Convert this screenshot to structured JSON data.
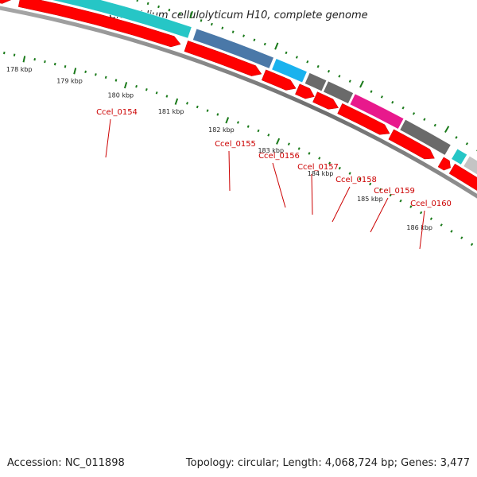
{
  "title": "Clostridium cellulolyticum H10, complete genome",
  "footer": {
    "accession": "Accession: NC_011898",
    "summary": "Topology: circular; Length: 4,068,724 bp; Genes: 3,477"
  },
  "colors": {
    "backbone": "#777777",
    "cds": "#ff0000",
    "gene_label": "#cc0000",
    "ticks": "#1a7a1a",
    "cyan": "#26c6c6",
    "steelblue": "#4a78a8",
    "skyblue": "#1ab2ee",
    "darkgray": "#6a6a6a",
    "magenta": "#e8198c",
    "lightgray": "#c4c4c4"
  },
  "gene_labels": [
    "Ccel_0154",
    "Ccel_0155",
    "Ccel_0156",
    "Ccel_0157",
    "Ccel_0158",
    "Ccel_0159",
    "Ccel_0160"
  ],
  "kbp_labels": [
    "178 kbp",
    "179 kbp",
    "180 kbp",
    "181 kbp",
    "182 kbp",
    "183 kbp",
    "184 kbp",
    "185 kbp",
    "186 kbp"
  ],
  "cog_features": [
    {
      "color": "cyan"
    },
    {
      "color": "cyan"
    },
    {
      "color": "steelblue"
    },
    {
      "color": "skyblue"
    },
    {
      "color": "darkgray"
    },
    {
      "color": "darkgray"
    },
    {
      "color": "magenta"
    },
    {
      "color": "darkgray"
    },
    {
      "color": "cyan"
    },
    {
      "color": "lightgray"
    }
  ]
}
